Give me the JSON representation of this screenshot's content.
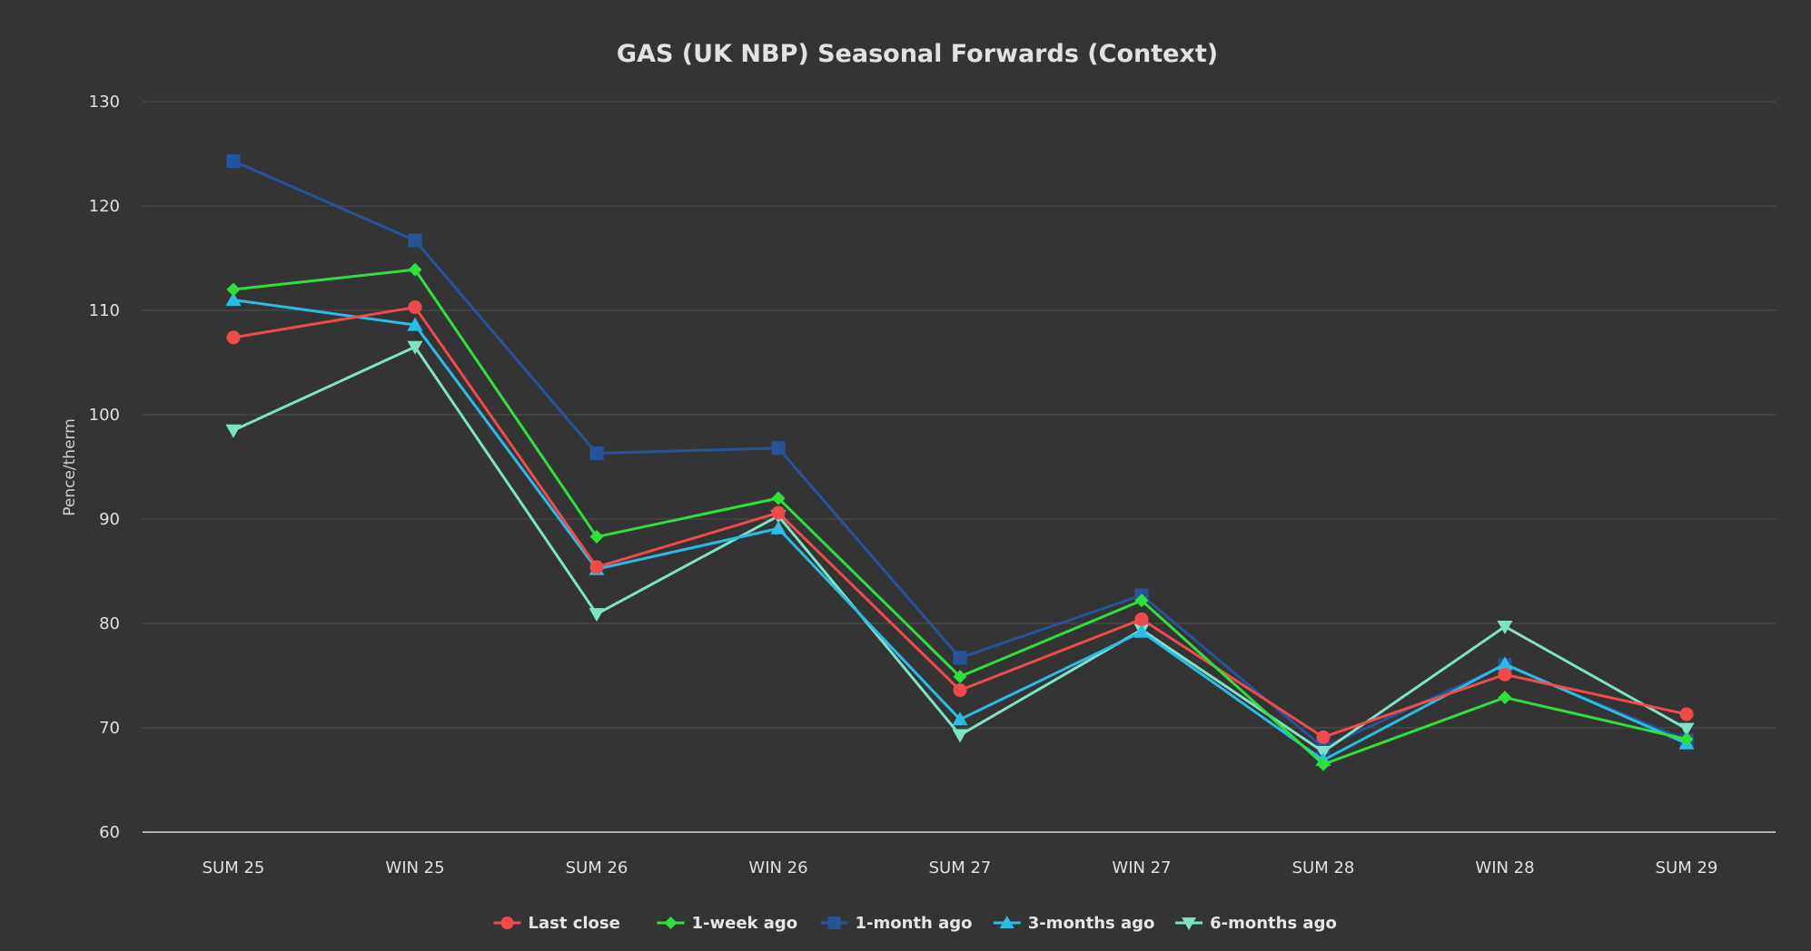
{
  "chart_data": {
    "type": "line",
    "title": "GAS (UK NBP) Seasonal Forwards (Context)",
    "xlabel": "",
    "ylabel": "Pence/therm",
    "ylim": [
      60,
      130
    ],
    "yticks": [
      60,
      70,
      80,
      90,
      100,
      110,
      120,
      130
    ],
    "grid": true,
    "legend_position": "bottom-center",
    "categories": [
      "SUM 25",
      "WIN 25",
      "SUM 26",
      "WIN 26",
      "SUM 27",
      "WIN 27",
      "SUM 28",
      "WIN 28",
      "SUM 29"
    ],
    "series": [
      {
        "name": "1-month ago",
        "color": "#26539a",
        "marker": "square",
        "values": [
          124.3,
          116.7,
          96.3,
          96.8,
          76.7,
          82.7,
          68.1,
          76.0,
          68.8
        ]
      },
      {
        "name": "6-months ago",
        "color": "#7ee2c5",
        "marker": "triangle-down",
        "values": [
          98.5,
          106.5,
          80.9,
          90.3,
          69.3,
          79.4,
          67.7,
          79.7,
          69.9
        ]
      },
      {
        "name": "3-months ago",
        "color": "#29bde6",
        "marker": "triangle-up",
        "values": [
          111.0,
          108.6,
          85.2,
          89.1,
          70.8,
          79.2,
          66.9,
          76.1,
          68.5
        ]
      },
      {
        "name": "Last close",
        "color": "#f04a4a",
        "marker": "circle",
        "values": [
          107.4,
          110.3,
          85.4,
          90.6,
          73.6,
          80.4,
          69.1,
          75.1,
          71.3
        ]
      },
      {
        "name": "1-week ago",
        "color": "#2ee03a",
        "marker": "diamond",
        "values": [
          112.0,
          113.9,
          88.3,
          92.0,
          74.9,
          82.2,
          66.5,
          72.9,
          68.9
        ]
      }
    ],
    "legend_order": [
      "Last close",
      "1-week ago",
      "1-month ago",
      "3-months ago",
      "6-months ago"
    ]
  }
}
